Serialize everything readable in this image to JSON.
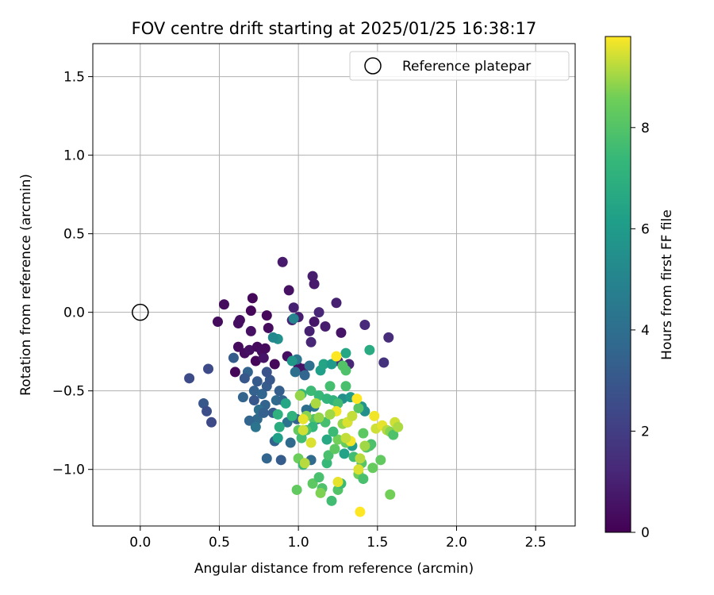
{
  "chart_data": {
    "type": "scatter",
    "title": "FOV centre drift starting at 2025/01/25 16:38:17",
    "xlabel": "Angular distance from reference (arcmin)",
    "ylabel": "Rotation from reference (arcmin)",
    "xlim": [
      -0.3,
      2.75
    ],
    "ylim": [
      -1.36,
      1.71
    ],
    "x_ticks": [
      0.0,
      0.5,
      1.0,
      1.5,
      2.0,
      2.5
    ],
    "x_tick_labels": [
      "0.0",
      "0.5",
      "1.0",
      "1.5",
      "2.0",
      "2.5"
    ],
    "y_ticks": [
      -1.0,
      -0.5,
      0.0,
      0.5,
      1.0,
      1.5
    ],
    "y_tick_labels": [
      "−1.0",
      "−0.5",
      "0.0",
      "0.5",
      "1.0",
      "1.5"
    ],
    "grid": true,
    "legend": {
      "position": "top-right",
      "label": "Reference platepar"
    },
    "reference_point": {
      "x": 0.0,
      "y": 0.0
    },
    "colorbar": {
      "label": "Hours from first FF file",
      "range": [
        0,
        9.8
      ],
      "ticks": [
        0,
        2,
        4,
        6,
        8
      ],
      "tick_labels": [
        "0",
        "2",
        "4",
        "6",
        "8"
      ],
      "colormap": "viridis"
    },
    "points": [
      {
        "x": 0.53,
        "y": 0.05,
        "c": 0.3
      },
      {
        "x": 0.49,
        "y": -0.06,
        "c": 0.3
      },
      {
        "x": 0.62,
        "y": -0.07,
        "c": 0.4
      },
      {
        "x": 0.63,
        "y": -0.05,
        "c": 0.4
      },
      {
        "x": 0.71,
        "y": 0.09,
        "c": 0.2
      },
      {
        "x": 0.7,
        "y": 0.01,
        "c": 0.2
      },
      {
        "x": 0.7,
        "y": -0.12,
        "c": 0.5
      },
      {
        "x": 0.62,
        "y": -0.22,
        "c": 0.3
      },
      {
        "x": 0.66,
        "y": -0.26,
        "c": 0.4
      },
      {
        "x": 0.6,
        "y": -0.38,
        "c": 0.2
      },
      {
        "x": 0.69,
        "y": -0.24,
        "c": 0.5
      },
      {
        "x": 0.74,
        "y": -0.22,
        "c": 0.3
      },
      {
        "x": 0.77,
        "y": -0.25,
        "c": 0.4
      },
      {
        "x": 0.73,
        "y": -0.31,
        "c": 0.2
      },
      {
        "x": 0.78,
        "y": -0.29,
        "c": 0.6
      },
      {
        "x": 0.79,
        "y": -0.23,
        "c": 0.3
      },
      {
        "x": 0.8,
        "y": -0.02,
        "c": 0.2
      },
      {
        "x": 0.81,
        "y": -0.1,
        "c": 0.3
      },
      {
        "x": 0.85,
        "y": -0.33,
        "c": 0.2
      },
      {
        "x": 0.9,
        "y": 0.32,
        "c": 0.8
      },
      {
        "x": 0.94,
        "y": 0.14,
        "c": 0.5
      },
      {
        "x": 0.97,
        "y": 0.03,
        "c": 1.0
      },
      {
        "x": 1.0,
        "y": -0.03,
        "c": 0.9
      },
      {
        "x": 0.96,
        "y": -0.05,
        "c": 1.1
      },
      {
        "x": 1.09,
        "y": 0.23,
        "c": 0.9
      },
      {
        "x": 1.1,
        "y": 0.18,
        "c": 0.8
      },
      {
        "x": 1.13,
        "y": 0.0,
        "c": 1.2
      },
      {
        "x": 1.1,
        "y": -0.06,
        "c": 0.7
      },
      {
        "x": 1.07,
        "y": -0.12,
        "c": 1.0
      },
      {
        "x": 1.08,
        "y": -0.19,
        "c": 1.2
      },
      {
        "x": 1.17,
        "y": -0.09,
        "c": 0.9
      },
      {
        "x": 1.24,
        "y": 0.06,
        "c": 1.0
      },
      {
        "x": 1.27,
        "y": -0.13,
        "c": 0.6
      },
      {
        "x": 1.42,
        "y": -0.08,
        "c": 1.3
      },
      {
        "x": 1.57,
        "y": -0.16,
        "c": 1.4
      },
      {
        "x": 1.54,
        "y": -0.32,
        "c": 1.6
      },
      {
        "x": 0.93,
        "y": -0.28,
        "c": 0.4
      },
      {
        "x": 1.0,
        "y": -0.35,
        "c": 0.5
      },
      {
        "x": 1.03,
        "y": -0.36,
        "c": 0.6
      },
      {
        "x": 1.25,
        "y": -0.31,
        "c": 1.4
      },
      {
        "x": 1.32,
        "y": -0.33,
        "c": 1.2
      },
      {
        "x": 0.31,
        "y": -0.42,
        "c": 2.5
      },
      {
        "x": 0.43,
        "y": -0.36,
        "c": 2.5
      },
      {
        "x": 0.4,
        "y": -0.58,
        "c": 3.0
      },
      {
        "x": 0.42,
        "y": -0.63,
        "c": 2.6
      },
      {
        "x": 0.45,
        "y": -0.7,
        "c": 2.4
      },
      {
        "x": 0.59,
        "y": -0.29,
        "c": 3.2
      },
      {
        "x": 0.68,
        "y": -0.38,
        "c": 3.5
      },
      {
        "x": 0.66,
        "y": -0.42,
        "c": 3.0
      },
      {
        "x": 0.74,
        "y": -0.44,
        "c": 3.1
      },
      {
        "x": 0.72,
        "y": -0.5,
        "c": 3.4
      },
      {
        "x": 0.65,
        "y": -0.54,
        "c": 3.5
      },
      {
        "x": 0.72,
        "y": -0.56,
        "c": 3.0
      },
      {
        "x": 0.77,
        "y": -0.52,
        "c": 3.6
      },
      {
        "x": 0.8,
        "y": -0.47,
        "c": 3.2
      },
      {
        "x": 0.82,
        "y": -0.43,
        "c": 3.0
      },
      {
        "x": 0.8,
        "y": -0.38,
        "c": 2.8
      },
      {
        "x": 0.79,
        "y": -0.59,
        "c": 3.5
      },
      {
        "x": 0.75,
        "y": -0.62,
        "c": 4.0
      },
      {
        "x": 0.74,
        "y": -0.68,
        "c": 3.8
      },
      {
        "x": 0.69,
        "y": -0.69,
        "c": 3.6
      },
      {
        "x": 0.73,
        "y": -0.73,
        "c": 4.2
      },
      {
        "x": 0.78,
        "y": -0.64,
        "c": 3.4
      },
      {
        "x": 0.84,
        "y": -0.64,
        "c": 3.2
      },
      {
        "x": 0.86,
        "y": -0.56,
        "c": 3.8
      },
      {
        "x": 0.88,
        "y": -0.5,
        "c": 3.3
      },
      {
        "x": 0.9,
        "y": -0.56,
        "c": 3.6
      },
      {
        "x": 0.85,
        "y": -0.82,
        "c": 3.5
      },
      {
        "x": 0.89,
        "y": -0.94,
        "c": 3.2
      },
      {
        "x": 0.8,
        "y": -0.93,
        "c": 3.6
      },
      {
        "x": 0.93,
        "y": -0.7,
        "c": 4.2
      },
      {
        "x": 0.95,
        "y": -0.83,
        "c": 3.8
      },
      {
        "x": 0.99,
        "y": -0.68,
        "c": 3.5
      },
      {
        "x": 0.98,
        "y": -0.38,
        "c": 4.0
      },
      {
        "x": 0.99,
        "y": -0.3,
        "c": 4.4
      },
      {
        "x": 1.07,
        "y": -0.34,
        "c": 4.1
      },
      {
        "x": 1.04,
        "y": -0.4,
        "c": 3.6
      },
      {
        "x": 0.87,
        "y": -0.17,
        "c": 5.5
      },
      {
        "x": 0.97,
        "y": -0.04,
        "c": 5.0
      },
      {
        "x": 0.84,
        "y": -0.16,
        "c": 5.2
      },
      {
        "x": 0.96,
        "y": -0.31,
        "c": 5.8
      },
      {
        "x": 1.1,
        "y": -0.6,
        "c": 4.6
      },
      {
        "x": 1.05,
        "y": -0.62,
        "c": 4.0
      },
      {
        "x": 1.12,
        "y": -0.68,
        "c": 5.0
      },
      {
        "x": 1.08,
        "y": -0.94,
        "c": 3.8
      },
      {
        "x": 1.14,
        "y": -0.37,
        "c": 6.2
      },
      {
        "x": 1.16,
        "y": -0.33,
        "c": 6.4
      },
      {
        "x": 1.21,
        "y": -0.33,
        "c": 6.0
      },
      {
        "x": 1.3,
        "y": -0.26,
        "c": 6.5
      },
      {
        "x": 1.45,
        "y": -0.24,
        "c": 6.7
      },
      {
        "x": 1.28,
        "y": -0.55,
        "c": 5.5
      },
      {
        "x": 1.33,
        "y": -0.54,
        "c": 6.0
      },
      {
        "x": 1.4,
        "y": -0.6,
        "c": 5.8
      },
      {
        "x": 1.31,
        "y": -0.7,
        "c": 5.7
      },
      {
        "x": 1.29,
        "y": -0.9,
        "c": 6.3
      },
      {
        "x": 1.34,
        "y": -0.85,
        "c": 6.0
      },
      {
        "x": 1.42,
        "y": -0.63,
        "c": 5.5
      },
      {
        "x": 1.18,
        "y": -0.81,
        "c": 6.6
      },
      {
        "x": 0.87,
        "y": -0.8,
        "c": 6.2
      },
      {
        "x": 0.88,
        "y": -0.73,
        "c": 6.8
      },
      {
        "x": 0.87,
        "y": -0.65,
        "c": 7.0
      },
      {
        "x": 0.92,
        "y": -0.58,
        "c": 6.5
      },
      {
        "x": 0.96,
        "y": -0.66,
        "c": 7.1
      },
      {
        "x": 1.02,
        "y": -0.52,
        "c": 7.3
      },
      {
        "x": 1.08,
        "y": -0.5,
        "c": 7.5
      },
      {
        "x": 1.13,
        "y": -0.53,
        "c": 7.4
      },
      {
        "x": 1.18,
        "y": -0.55,
        "c": 7.2
      },
      {
        "x": 1.22,
        "y": -0.56,
        "c": 7.1
      },
      {
        "x": 1.25,
        "y": -0.58,
        "c": 7.6
      },
      {
        "x": 1.2,
        "y": -0.47,
        "c": 7.7
      },
      {
        "x": 1.3,
        "y": -0.47,
        "c": 7.8
      },
      {
        "x": 1.3,
        "y": -0.37,
        "c": 7.9
      },
      {
        "x": 1.28,
        "y": -0.34,
        "c": 8.0
      },
      {
        "x": 1.38,
        "y": -0.61,
        "c": 8.1
      },
      {
        "x": 1.41,
        "y": -0.77,
        "c": 8.2
      },
      {
        "x": 1.46,
        "y": -0.84,
        "c": 7.8
      },
      {
        "x": 1.47,
        "y": -0.99,
        "c": 8.4
      },
      {
        "x": 1.52,
        "y": -0.94,
        "c": 8.3
      },
      {
        "x": 1.43,
        "y": -0.86,
        "c": 8.0
      },
      {
        "x": 1.45,
        "y": -0.85,
        "c": 7.9
      },
      {
        "x": 1.38,
        "y": -1.03,
        "c": 8.5
      },
      {
        "x": 1.41,
        "y": -1.06,
        "c": 7.8
      },
      {
        "x": 1.4,
        "y": -0.96,
        "c": 8.1
      },
      {
        "x": 1.35,
        "y": -0.92,
        "c": 7.6
      },
      {
        "x": 1.3,
        "y": -0.83,
        "c": 8.4
      },
      {
        "x": 1.25,
        "y": -0.81,
        "c": 8.6
      },
      {
        "x": 1.22,
        "y": -0.76,
        "c": 7.5
      },
      {
        "x": 1.17,
        "y": -0.7,
        "c": 7.7
      },
      {
        "x": 1.1,
        "y": -0.68,
        "c": 8.0
      },
      {
        "x": 1.09,
        "y": -0.73,
        "c": 7.3
      },
      {
        "x": 1.05,
        "y": -0.75,
        "c": 7.8
      },
      {
        "x": 1.0,
        "y": -0.75,
        "c": 8.3
      },
      {
        "x": 1.02,
        "y": -0.8,
        "c": 7.6
      },
      {
        "x": 1.0,
        "y": -0.93,
        "c": 8.5
      },
      {
        "x": 1.03,
        "y": -0.97,
        "c": 7.4
      },
      {
        "x": 1.09,
        "y": -1.09,
        "c": 8.2
      },
      {
        "x": 1.13,
        "y": -1.05,
        "c": 7.8
      },
      {
        "x": 1.15,
        "y": -1.12,
        "c": 7.9
      },
      {
        "x": 1.14,
        "y": -1.15,
        "c": 8.7
      },
      {
        "x": 1.21,
        "y": -1.2,
        "c": 7.6
      },
      {
        "x": 1.25,
        "y": -1.13,
        "c": 8.0
      },
      {
        "x": 1.27,
        "y": -1.09,
        "c": 7.5
      },
      {
        "x": 0.99,
        "y": -1.13,
        "c": 8.3
      },
      {
        "x": 1.18,
        "y": -0.96,
        "c": 7.4
      },
      {
        "x": 1.19,
        "y": -0.91,
        "c": 7.8
      },
      {
        "x": 1.23,
        "y": -0.87,
        "c": 8.2
      },
      {
        "x": 1.28,
        "y": -0.71,
        "c": 8.9
      },
      {
        "x": 1.31,
        "y": -0.7,
        "c": 9.5
      },
      {
        "x": 1.34,
        "y": -0.66,
        "c": 9.3
      },
      {
        "x": 1.37,
        "y": -0.55,
        "c": 9.8
      },
      {
        "x": 1.24,
        "y": -0.28,
        "c": 9.8
      },
      {
        "x": 1.48,
        "y": -0.66,
        "c": 9.7
      },
      {
        "x": 1.49,
        "y": -0.74,
        "c": 9.4
      },
      {
        "x": 1.53,
        "y": -0.72,
        "c": 9.6
      },
      {
        "x": 1.56,
        "y": -0.75,
        "c": 9.2
      },
      {
        "x": 1.58,
        "y": -0.76,
        "c": 8.8
      },
      {
        "x": 1.6,
        "y": -0.78,
        "c": 7.9
      },
      {
        "x": 1.61,
        "y": -0.7,
        "c": 9.4
      },
      {
        "x": 1.63,
        "y": -0.73,
        "c": 9.1
      },
      {
        "x": 1.58,
        "y": -1.16,
        "c": 8.6
      },
      {
        "x": 1.39,
        "y": -1.27,
        "c": 9.8
      },
      {
        "x": 1.38,
        "y": -1.0,
        "c": 9.5
      },
      {
        "x": 1.39,
        "y": -0.93,
        "c": 9.2
      },
      {
        "x": 1.25,
        "y": -1.08,
        "c": 9.6
      },
      {
        "x": 1.24,
        "y": -0.63,
        "c": 9.7
      },
      {
        "x": 1.2,
        "y": -0.65,
        "c": 9.0
      },
      {
        "x": 1.13,
        "y": -0.67,
        "c": 8.9
      },
      {
        "x": 1.11,
        "y": -0.58,
        "c": 9.1
      },
      {
        "x": 1.05,
        "y": -0.66,
        "c": 8.8
      },
      {
        "x": 1.03,
        "y": -0.68,
        "c": 9.6
      },
      {
        "x": 1.03,
        "y": -0.75,
        "c": 9.4
      },
      {
        "x": 1.08,
        "y": -0.83,
        "c": 9.5
      },
      {
        "x": 1.01,
        "y": -0.53,
        "c": 8.9
      },
      {
        "x": 1.04,
        "y": -0.96,
        "c": 9.2
      },
      {
        "x": 1.33,
        "y": -0.82,
        "c": 9.7
      },
      {
        "x": 1.3,
        "y": -0.8,
        "c": 9.3
      },
      {
        "x": 1.42,
        "y": -0.85,
        "c": 9.0
      }
    ]
  }
}
